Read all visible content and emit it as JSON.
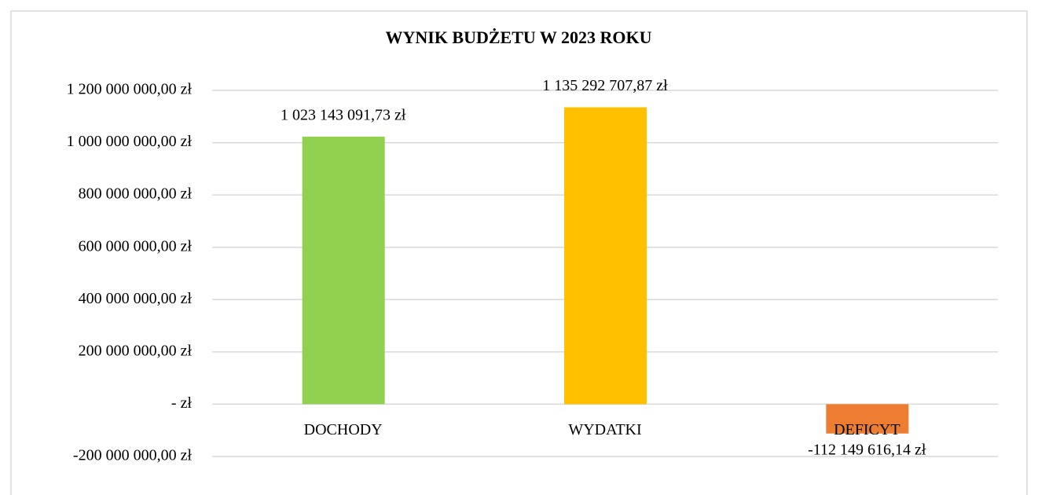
{
  "chart_data": {
    "type": "bar",
    "title": "WYNIK BUDŻETU W 2023 ROKU",
    "categories": [
      "DOCHODY",
      "WYDATKI",
      "DEFICYT"
    ],
    "values": [
      1023143091.73,
      1135292707.87,
      -112149616.14
    ],
    "value_labels": [
      "1 023 143 091,73 zł",
      "1 135 292 707,87 zł",
      "-112 149 616,14 zł"
    ],
    "colors": [
      "#92d050",
      "#ffc000",
      "#ed7d31"
    ],
    "ylim": [
      -200000000,
      1200000000
    ],
    "yticks": [
      {
        "value": -200000000,
        "label": "-200 000 000,00 zł"
      },
      {
        "value": 0,
        "label": "-   zł"
      },
      {
        "value": 200000000,
        "label": "200 000 000,00 zł"
      },
      {
        "value": 400000000,
        "label": "400 000 000,00 zł"
      },
      {
        "value": 600000000,
        "label": "600 000 000,00 zł"
      },
      {
        "value": 800000000,
        "label": "800 000 000,00 zł"
      },
      {
        "value": 1000000000,
        "label": "1 000 000 000,00 zł"
      },
      {
        "value": 1200000000,
        "label": "1 200 000 000,00 zł"
      }
    ],
    "grid": true
  }
}
